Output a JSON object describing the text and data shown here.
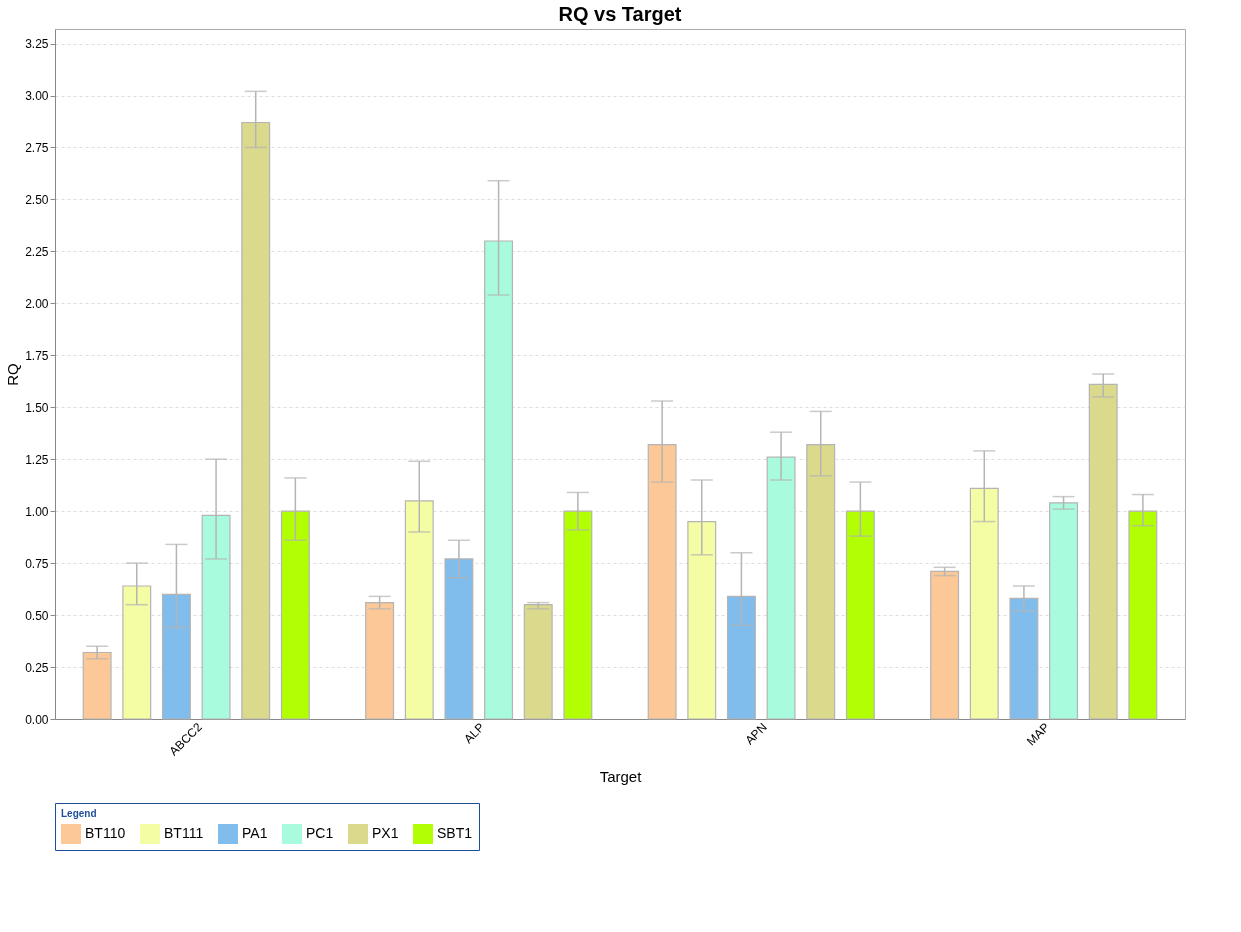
{
  "chart_data": {
    "type": "bar",
    "title": "RQ vs Target",
    "xlabel": "Target",
    "ylabel": "RQ",
    "legend_title": "Legend",
    "legend": "bottom",
    "grid": "y",
    "categories": [
      "ABCC2",
      "ALP",
      "APN",
      "MAP"
    ],
    "series": [
      {
        "name": "BT110",
        "color": "#fdc897",
        "values": [
          0.32,
          0.56,
          1.32,
          0.71
        ],
        "errors": [
          [
            0.29,
            0.35
          ],
          [
            0.53,
            0.59
          ],
          [
            1.14,
            1.53
          ],
          [
            0.69,
            0.73
          ]
        ]
      },
      {
        "name": "BT111",
        "color": "#f4fca4",
        "values": [
          0.64,
          1.05,
          0.95,
          1.11
        ],
        "errors": [
          [
            0.55,
            0.75
          ],
          [
            0.9,
            1.24
          ],
          [
            0.79,
            1.15
          ],
          [
            0.95,
            1.29
          ]
        ]
      },
      {
        "name": "PA1",
        "color": "#80bdec",
        "values": [
          0.6,
          0.77,
          0.59,
          0.58
        ],
        "errors": [
          [
            0.44,
            0.84
          ],
          [
            0.68,
            0.86
          ],
          [
            0.45,
            0.8
          ],
          [
            0.52,
            0.64
          ]
        ]
      },
      {
        "name": "PC1",
        "color": "#a8fbdc",
        "values": [
          0.98,
          2.3,
          1.26,
          1.04
        ],
        "errors": [
          [
            0.77,
            1.25
          ],
          [
            2.04,
            2.59
          ],
          [
            1.15,
            1.38
          ],
          [
            1.01,
            1.07
          ]
        ]
      },
      {
        "name": "PX1",
        "color": "#dbd98c",
        "values": [
          2.87,
          0.55,
          1.32,
          1.61
        ],
        "errors": [
          [
            2.75,
            3.02
          ],
          [
            0.53,
            0.56
          ],
          [
            1.17,
            1.48
          ],
          [
            1.55,
            1.66
          ]
        ]
      },
      {
        "name": "SBT1",
        "color": "#b2fe03",
        "values": [
          1.0,
          1.0,
          1.0,
          1.0
        ],
        "errors": [
          [
            0.86,
            1.16
          ],
          [
            0.91,
            1.09
          ],
          [
            0.88,
            1.14
          ],
          [
            0.93,
            1.08
          ]
        ]
      }
    ],
    "ylim": [
      0,
      3.32
    ],
    "yticks": [
      {
        "value": 0,
        "label": "0.00"
      },
      0.25,
      {
        "value": 0.5,
        "label": "0.50"
      },
      0.75,
      {
        "value": 1,
        "label": "1.00"
      },
      1.25,
      {
        "value": 1.5,
        "label": "1.50"
      },
      1.75,
      {
        "value": 2,
        "label": "2.00"
      },
      2.25,
      {
        "value": 2.5,
        "label": "2.50"
      },
      2.75,
      {
        "value": 3,
        "label": "3.00"
      },
      3.25
    ]
  }
}
